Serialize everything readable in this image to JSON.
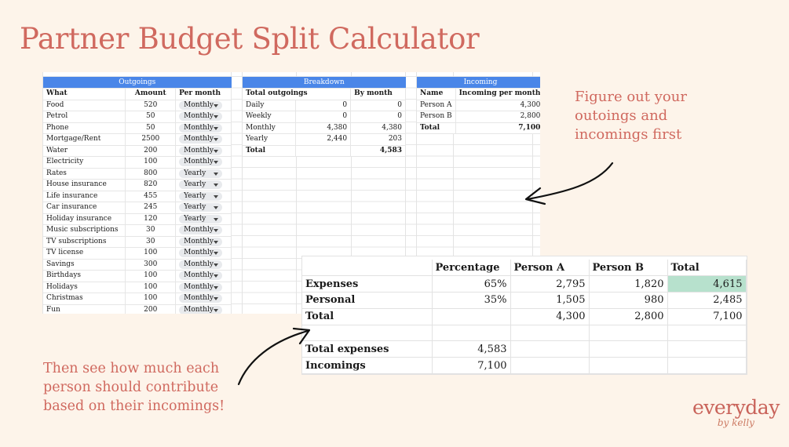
{
  "title": "Partner Budget Split Calculator",
  "outgoings": {
    "header": "Outgoings",
    "columns": [
      "What",
      "Amount",
      "Per month"
    ],
    "rows": [
      {
        "what": "Food",
        "amount": "520",
        "freq": "Monthly"
      },
      {
        "what": "Petrol",
        "amount": "50",
        "freq": "Monthly"
      },
      {
        "what": "Phone",
        "amount": "50",
        "freq": "Monthly"
      },
      {
        "what": "Mortgage/Rent",
        "amount": "2500",
        "freq": "Monthly"
      },
      {
        "what": "Water",
        "amount": "200",
        "freq": "Monthly"
      },
      {
        "what": "Electricity",
        "amount": "100",
        "freq": "Monthly"
      },
      {
        "what": "Rates",
        "amount": "800",
        "freq": "Yearly"
      },
      {
        "what": "House insurance",
        "amount": "820",
        "freq": "Yearly"
      },
      {
        "what": "Life insurance",
        "amount": "455",
        "freq": "Yearly"
      },
      {
        "what": "Car insurance",
        "amount": "245",
        "freq": "Yearly"
      },
      {
        "what": "Holiday insurance",
        "amount": "120",
        "freq": "Yearly"
      },
      {
        "what": "Music subscriptions",
        "amount": "30",
        "freq": "Monthly"
      },
      {
        "what": "TV subscriptions",
        "amount": "30",
        "freq": "Monthly"
      },
      {
        "what": "TV license",
        "amount": "100",
        "freq": "Monthly"
      },
      {
        "what": "Savings",
        "amount": "300",
        "freq": "Monthly"
      },
      {
        "what": "Birthdays",
        "amount": "100",
        "freq": "Monthly"
      },
      {
        "what": "Holidays",
        "amount": "100",
        "freq": "Monthly"
      },
      {
        "what": "Christmas",
        "amount": "100",
        "freq": "Monthly"
      },
      {
        "what": "Fun",
        "amount": "200",
        "freq": "Monthly"
      }
    ]
  },
  "breakdown": {
    "header": "Breakdown",
    "columns": [
      "Total outgoings",
      "",
      "By month"
    ],
    "rows": [
      {
        "label": "Daily",
        "total": "0",
        "by_month": "0"
      },
      {
        "label": "Weekly",
        "total": "0",
        "by_month": "0"
      },
      {
        "label": "Monthly",
        "total": "4,380",
        "by_month": "4,380"
      },
      {
        "label": "Yearly",
        "total": "2,440",
        "by_month": "203"
      }
    ],
    "total_label": "Total",
    "total_value": "4,583"
  },
  "incoming": {
    "header": "Incoming",
    "columns": [
      "Name",
      "Incoming per month"
    ],
    "rows": [
      {
        "name": "Person A",
        "value": "4,300"
      },
      {
        "name": "Person B",
        "value": "2,800"
      }
    ],
    "total_label": "Total",
    "total_value": "7,100"
  },
  "summary": {
    "columns": [
      "",
      "Percentage",
      "Person A",
      "Person B",
      "Total"
    ],
    "rows": [
      {
        "label": "Expenses",
        "pct": "65%",
        "a": "2,795",
        "b": "1,820",
        "total": "4,615"
      },
      {
        "label": "Personal",
        "pct": "35%",
        "a": "1,505",
        "b": "980",
        "total": "2,485"
      },
      {
        "label": "Total",
        "pct": "",
        "a": "4,300",
        "b": "2,800",
        "total": "7,100"
      }
    ],
    "total_expenses_label": "Total expenses",
    "total_expenses_value": "4,583",
    "incomings_label": "Incomings",
    "incomings_value": "7,100",
    "highlight_color": "#b7e1cd"
  },
  "notes": {
    "first": "Figure out your outoings and incomings first",
    "second": "Then see how much each person should contribute based on their incomings!"
  },
  "logo": {
    "main": "everyday",
    "sub": "by kelly"
  },
  "colors": {
    "background": "#fdf4ea",
    "accent": "#d0695f",
    "header_blue": "#4a86e8"
  }
}
